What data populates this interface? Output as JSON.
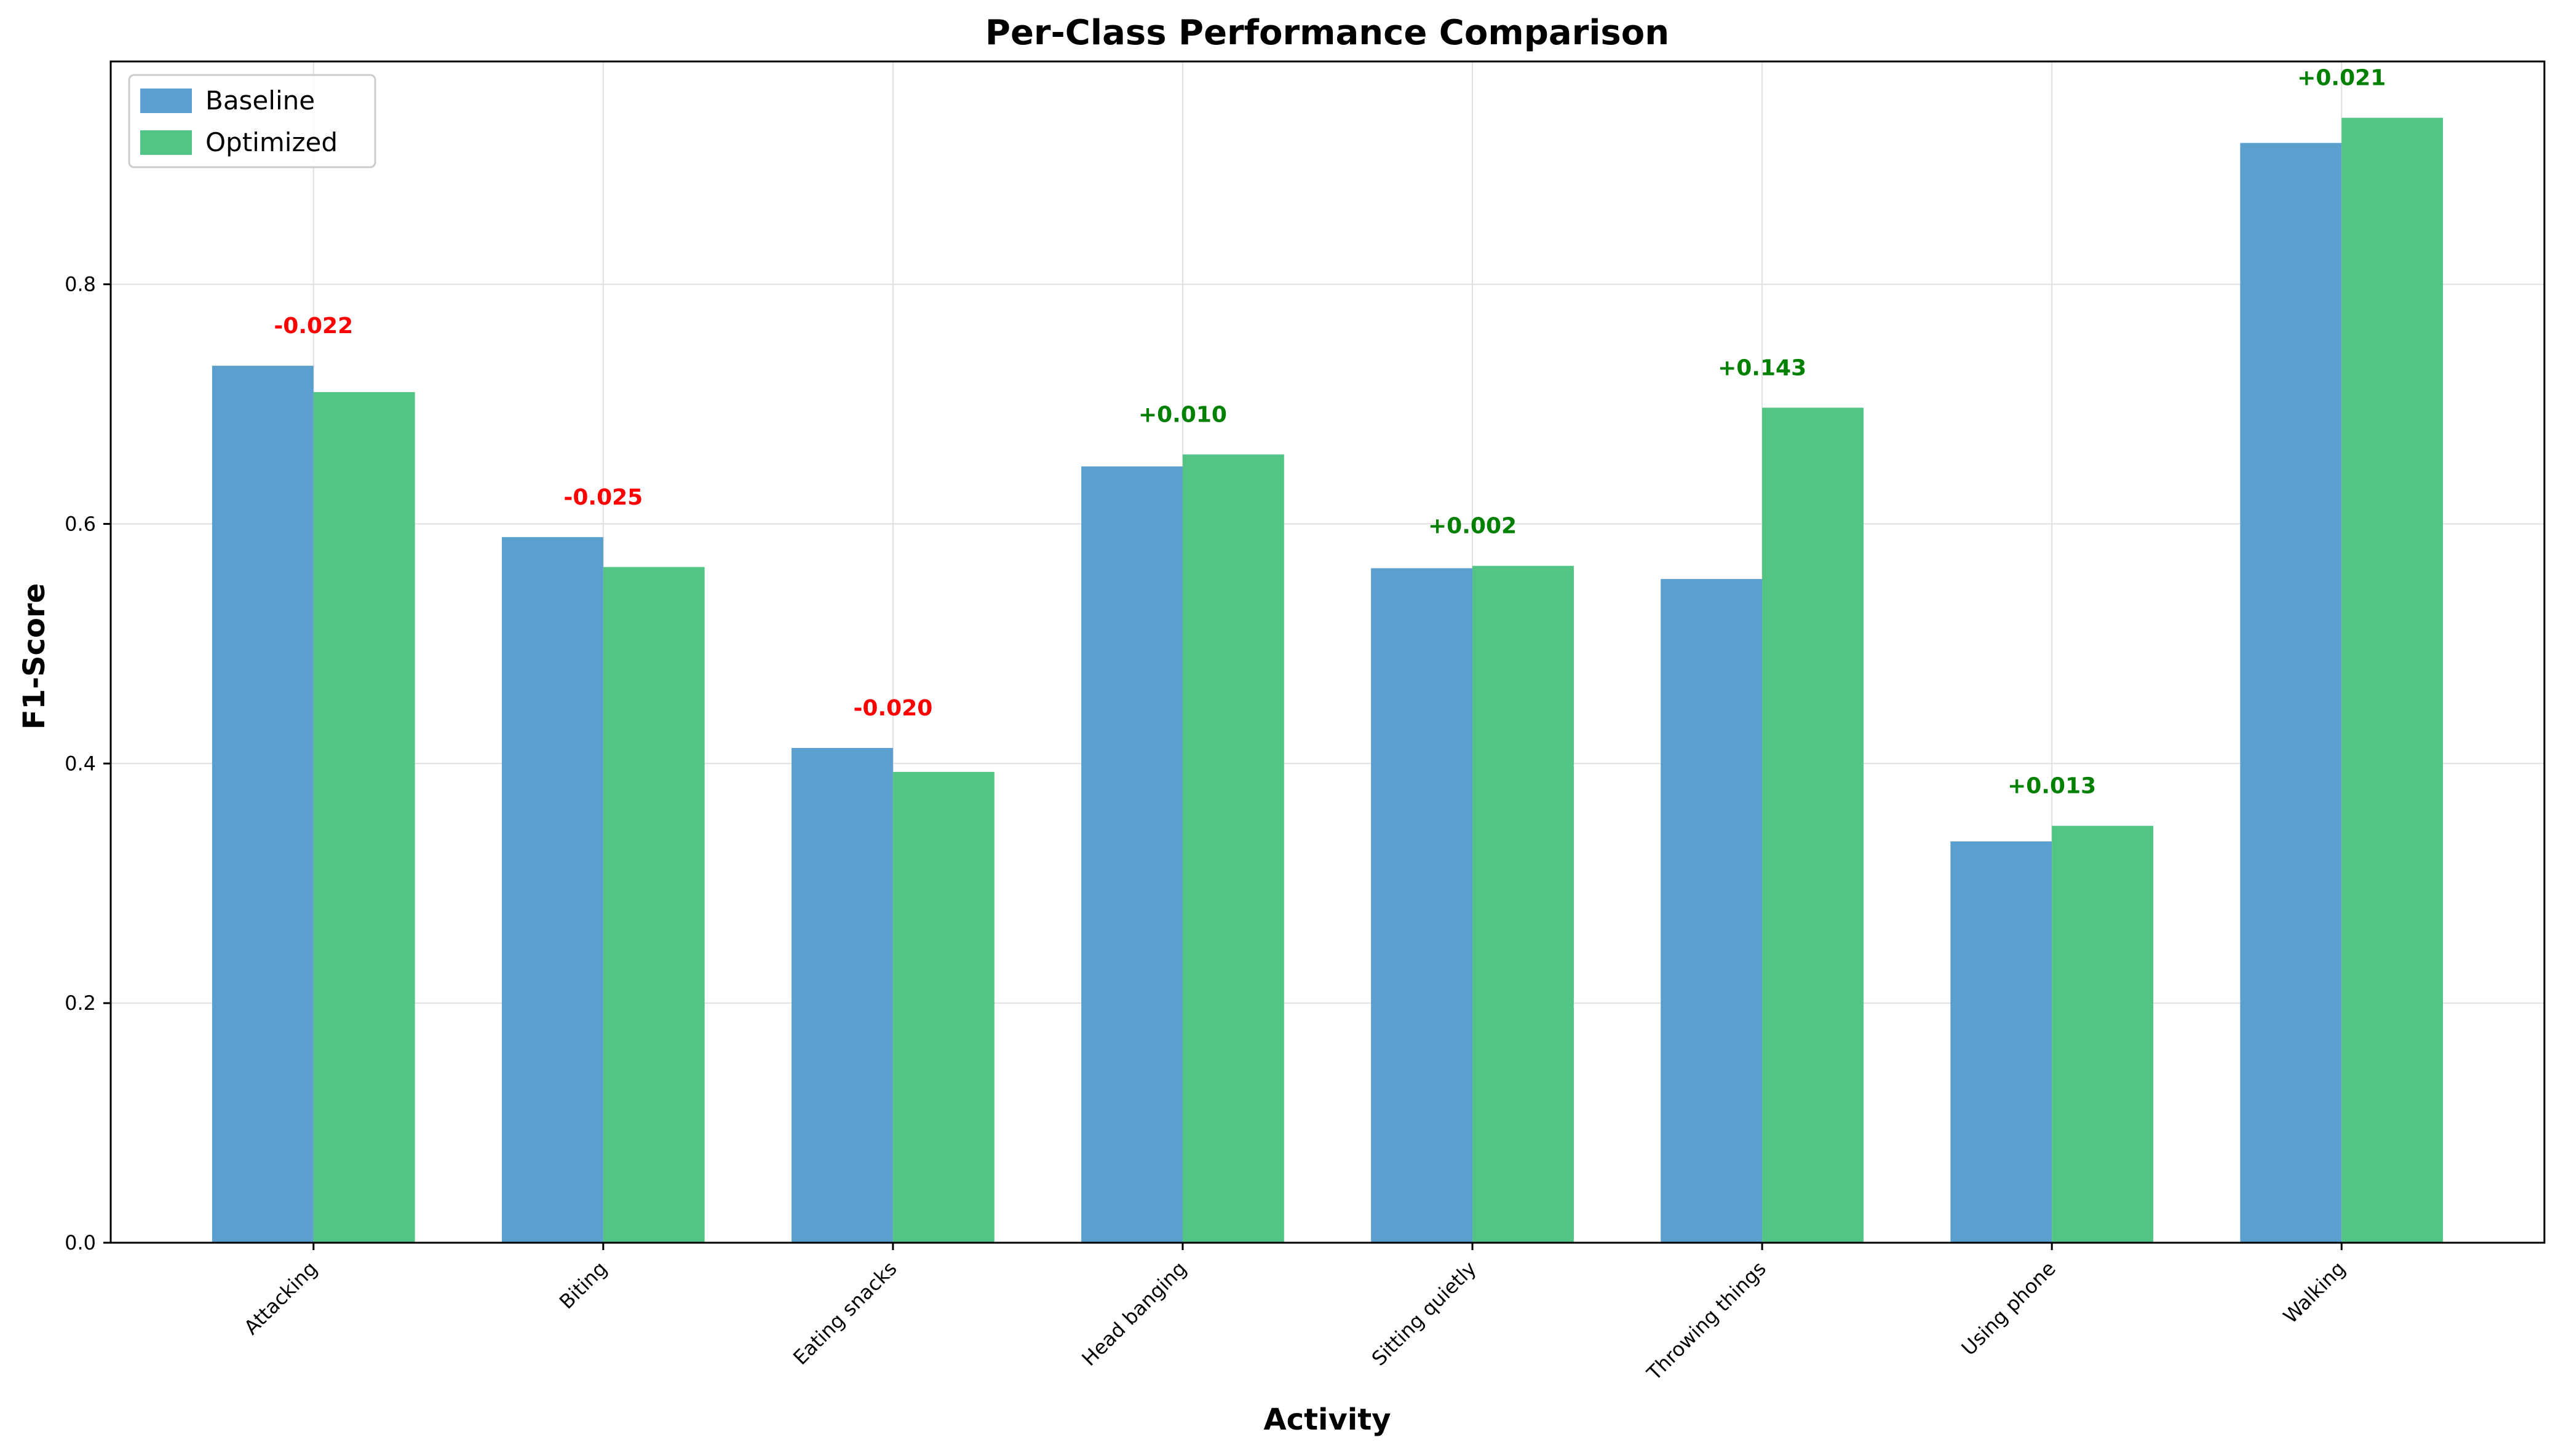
{
  "chart_data": {
    "type": "bar",
    "title": "Per-Class Performance Comparison",
    "xlabel": "Activity",
    "ylabel": "F1-Score",
    "categories": [
      "Attacking",
      "Biting",
      "Eating snacks",
      "Head banging",
      "Sitting quietly",
      "Throwing things",
      "Using phone",
      "Walking"
    ],
    "series": [
      {
        "name": "Baseline",
        "color": "#5a9fcd",
        "values": [
          0.732,
          0.589,
          0.413,
          0.648,
          0.563,
          0.554,
          0.335,
          0.918
        ]
      },
      {
        "name": "Optimized",
        "color": "#52c483",
        "values": [
          0.71,
          0.564,
          0.393,
          0.658,
          0.565,
          0.697,
          0.348,
          0.939
        ]
      }
    ],
    "difference_labels": [
      "-0.022",
      "-0.025",
      "-0.020",
      "+0.010",
      "+0.002",
      "+0.143",
      "+0.013",
      "+0.021"
    ],
    "positive_color": "#008000",
    "negative_color": "#ff0000",
    "ylim": [
      0,
      0.986
    ],
    "yticks": [
      "0.0",
      "0.2",
      "0.4",
      "0.6",
      "0.8"
    ],
    "ytick_values": [
      0.0,
      0.2,
      0.4,
      0.6,
      0.8
    ],
    "grid": true,
    "legend_position": "top-left"
  }
}
